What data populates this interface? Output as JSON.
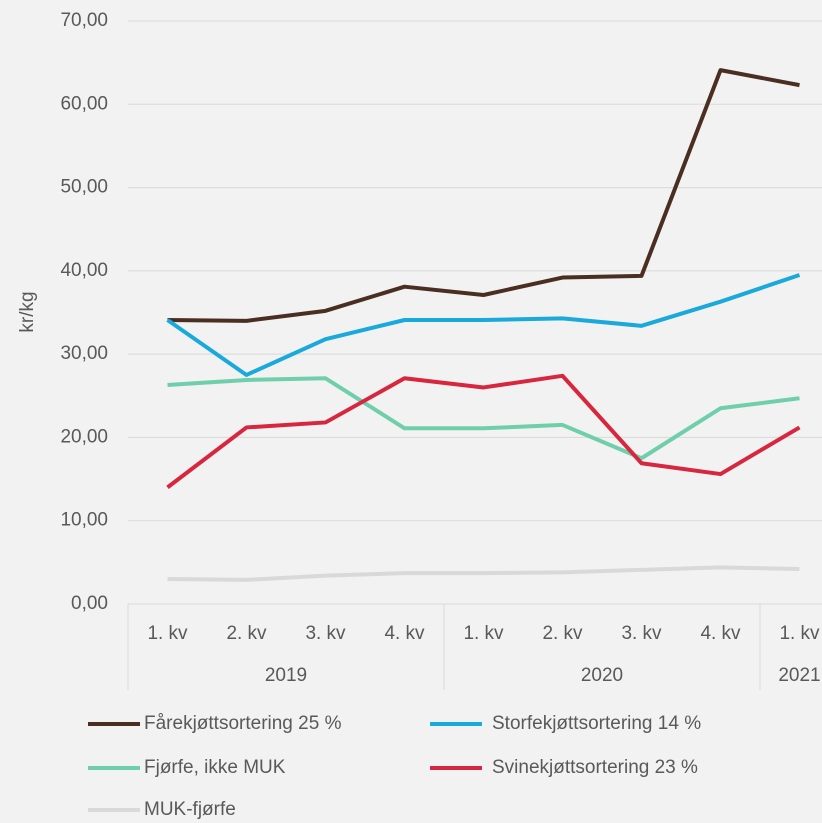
{
  "chart_data": {
    "type": "line",
    "y_label": "kr/kg",
    "categories": [
      "1. kv",
      "2. kv",
      "3. kv",
      "4. kv",
      "1. kv",
      "2. kv",
      "3. kv",
      "4. kv",
      "1. kv"
    ],
    "group_labels": [
      "2019",
      "2020",
      "2021"
    ],
    "series": [
      {
        "name": "Fårekjøttsortering 25 %",
        "color": "#4b2e22",
        "values": [
          34.1,
          34.0,
          35.2,
          38.1,
          37.1,
          39.2,
          39.4,
          64.1,
          62.3
        ]
      },
      {
        "name": "Storfekjøttsortering 14 %",
        "color": "#1aa9db",
        "values": [
          34.1,
          27.5,
          31.8,
          34.1,
          34.1,
          34.3,
          33.4,
          36.3,
          39.5
        ]
      },
      {
        "name": "Fjørfe, ikke MUK",
        "color": "#6fcfab",
        "values": [
          26.3,
          26.9,
          27.1,
          21.1,
          21.1,
          21.5,
          17.5,
          23.5,
          24.7
        ]
      },
      {
        "name": "Svinekjøttsortering 23 %",
        "color": "#d7263d",
        "values": [
          14.0,
          21.2,
          21.8,
          27.1,
          26.0,
          27.4,
          16.9,
          15.6,
          21.2
        ]
      },
      {
        "name": "MUK-fjørfe",
        "color": "#d9d9d9",
        "values": [
          3.0,
          2.9,
          3.4,
          3.7,
          3.7,
          3.8,
          4.1,
          4.4,
          4.2
        ]
      }
    ],
    "ylim": [
      0,
      70
    ],
    "yticks": [
      {
        "value": 0,
        "label": "0,00"
      },
      {
        "value": 10,
        "label": "10,00"
      },
      {
        "value": 20,
        "label": "20,00"
      },
      {
        "value": 30,
        "label": "30,00"
      },
      {
        "value": 40,
        "label": "40,00"
      },
      {
        "value": 50,
        "label": "50,00"
      },
      {
        "value": 60,
        "label": "60,00"
      },
      {
        "value": 70,
        "label": "70,00"
      }
    ],
    "grid": true
  }
}
